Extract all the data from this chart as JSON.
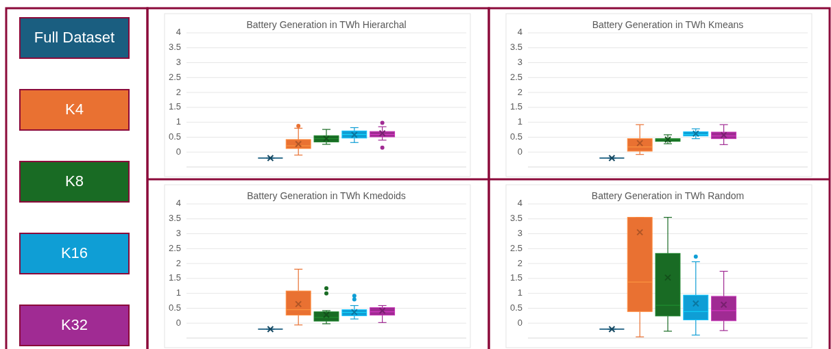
{
  "chart_data": [
    {
      "type": "box",
      "title": "Battery Generation in TWh Hierarchal",
      "categories": [
        null
      ],
      "ylim": [
        -0.5,
        4
      ],
      "yticks": [
        0,
        0.5,
        1,
        1.5,
        2,
        2.5,
        3,
        3.5,
        4
      ],
      "grid": "y",
      "tick_labels": "y",
      "legend": "left",
      "series": [
        {
          "name": "Full Dataset",
          "color": "#1a5e80",
          "boxes": [
            {
              "low": -0.2,
              "q1": -0.2,
              "median": -0.2,
              "q3": -0.2,
              "high": -0.2,
              "mean": -0.2
            }
          ]
        },
        {
          "name": "K4",
          "color": "#e97132",
          "boxes": [
            {
              "low": -0.1,
              "q1": 0.12,
              "median": 0.21,
              "q3": 0.42,
              "high": 0.8,
              "mean": 0.27,
              "outliers": [
                0.88
              ]
            }
          ]
        },
        {
          "name": "K8",
          "color": "#196b24",
          "boxes": [
            {
              "low": 0.26,
              "q1": 0.34,
              "median": 0.45,
              "q3": 0.55,
              "high": 0.76,
              "mean": 0.45
            }
          ]
        },
        {
          "name": "K16",
          "color": "#0f9ed5",
          "boxes": [
            {
              "low": 0.32,
              "q1": 0.47,
              "median": 0.59,
              "q3": 0.71,
              "high": 0.82,
              "mean": 0.58
            }
          ]
        },
        {
          "name": "K32",
          "color": "#a02b93",
          "boxes": [
            {
              "low": 0.4,
              "q1": 0.51,
              "median": 0.59,
              "q3": 0.69,
              "high": 0.85,
              "mean": 0.63,
              "outliers": [
                0.98,
                0.15
              ]
            }
          ]
        }
      ]
    },
    {
      "type": "box",
      "title": "Battery Generation in TWh Kmeans",
      "categories": [
        null
      ],
      "ylim": [
        -0.5,
        4
      ],
      "yticks": [
        0,
        0.5,
        1,
        1.5,
        2,
        2.5,
        3,
        3.5,
        4
      ],
      "grid": "y",
      "tick_labels": "y",
      "series": [
        {
          "color": "#1a5e80",
          "boxes": [
            {
              "low": -0.2,
              "q1": -0.2,
              "median": -0.2,
              "q3": -0.2,
              "high": -0.2,
              "mean": -0.2
            }
          ]
        },
        {
          "color": "#e97132",
          "boxes": [
            {
              "low": -0.08,
              "q1": 0.03,
              "median": 0.17,
              "q3": 0.45,
              "high": 0.92,
              "mean": 0.3
            }
          ]
        },
        {
          "color": "#196b24",
          "boxes": [
            {
              "low": 0.28,
              "q1": 0.36,
              "median": 0.42,
              "q3": 0.45,
              "high": 0.58,
              "mean": 0.42
            }
          ]
        },
        {
          "color": "#0f9ed5",
          "boxes": [
            {
              "low": 0.45,
              "q1": 0.54,
              "median": 0.59,
              "q3": 0.68,
              "high": 0.78,
              "mean": 0.62
            }
          ]
        },
        {
          "color": "#a02b93",
          "boxes": [
            {
              "low": 0.25,
              "q1": 0.45,
              "median": 0.54,
              "q3": 0.67,
              "high": 0.92,
              "mean": 0.57
            }
          ]
        }
      ]
    },
    {
      "type": "box",
      "title": "Battery Generation in TWh Kmedoids",
      "categories": [
        null
      ],
      "ylim": [
        -0.5,
        4
      ],
      "yticks": [
        0,
        0.5,
        1,
        1.5,
        2,
        2.5,
        3,
        3.5,
        4
      ],
      "grid": "y",
      "tick_labels": "y",
      "series": [
        {
          "color": "#1a5e80",
          "boxes": [
            {
              "low": -0.2,
              "q1": -0.2,
              "median": -0.2,
              "q3": -0.2,
              "high": -0.2,
              "mean": -0.2
            }
          ]
        },
        {
          "color": "#e97132",
          "boxes": [
            {
              "low": -0.06,
              "q1": 0.27,
              "median": 0.45,
              "q3": 1.08,
              "high": 1.81,
              "mean": 0.64
            }
          ]
        },
        {
          "color": "#196b24",
          "boxes": [
            {
              "low": -0.02,
              "q1": 0.07,
              "median": 0.19,
              "q3": 0.38,
              "high": 0.42,
              "mean": 0.28,
              "outliers": [
                1.17,
                1.0
              ]
            }
          ]
        },
        {
          "color": "#0f9ed5",
          "boxes": [
            {
              "low": 0.14,
              "q1": 0.25,
              "median": 0.36,
              "q3": 0.45,
              "high": 0.59,
              "mean": 0.37,
              "outliers": [
                0.92,
                0.8
              ]
            }
          ]
        },
        {
          "color": "#a02b93",
          "boxes": [
            {
              "low": 0.02,
              "q1": 0.27,
              "median": 0.38,
              "q3": 0.52,
              "high": 0.59,
              "mean": 0.42
            }
          ]
        }
      ]
    },
    {
      "type": "box",
      "title": "Battery Generation in TWh Random",
      "categories": [
        null
      ],
      "ylim": [
        -0.5,
        4
      ],
      "yticks": [
        0,
        0.5,
        1,
        1.5,
        2,
        2.5,
        3,
        3.5,
        4
      ],
      "grid": "y",
      "tick_labels": "y",
      "series": [
        {
          "color": "#1a5e80",
          "boxes": [
            {
              "low": -0.2,
              "q1": -0.2,
              "median": -0.2,
              "q3": -0.2,
              "high": -0.2,
              "mean": -0.2
            }
          ]
        },
        {
          "color": "#e97132",
          "boxes": [
            {
              "low": -0.46,
              "q1": 0.39,
              "median": 1.38,
              "q3": 3.55,
              "high": 3.55,
              "mean": 3.05
            }
          ]
        },
        {
          "color": "#196b24",
          "boxes": [
            {
              "low": -0.27,
              "q1": 0.24,
              "median": 0.6,
              "q3": 2.34,
              "high": 3.55,
              "mean": 1.53
            }
          ]
        },
        {
          "color": "#0f9ed5",
          "boxes": [
            {
              "low": -0.4,
              "q1": 0.11,
              "median": 0.39,
              "q3": 0.94,
              "high": 2.06,
              "mean": 0.66,
              "outliers": [
                2.23
              ]
            }
          ]
        },
        {
          "color": "#a02b93",
          "boxes": [
            {
              "low": -0.25,
              "q1": 0.08,
              "median": 0.42,
              "q3": 0.9,
              "high": 1.74,
              "mean": 0.62
            }
          ]
        }
      ]
    }
  ]
}
